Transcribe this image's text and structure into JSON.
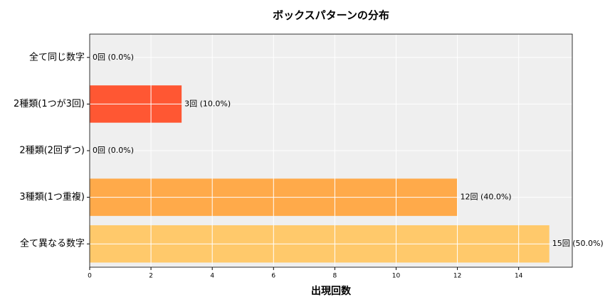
{
  "chart_data": {
    "type": "barh",
    "title": "ボックスパターンの分布",
    "x_label": "出現回数",
    "categories": [
      "全て同じ数字",
      "2種類(1つが3回)",
      "2種類(2回ずつ)",
      "3種類(1つ重複)",
      "全て異なる数字"
    ],
    "values": [
      0,
      3,
      0,
      12,
      15
    ],
    "value_labels": [
      "0回 (0.0%)",
      "3回 (10.0%)",
      "0回 (0.0%)",
      "12回 (40.0%)",
      "15回 (50.0%)"
    ],
    "colors": [
      "#e8342a",
      "#ff5733",
      "#ff8c42",
      "#ffaa4a",
      "#ffc96b"
    ],
    "xlim": [
      0,
      15.75
    ],
    "xticks": [
      0,
      2,
      4,
      6,
      8,
      10,
      12,
      14
    ],
    "grid": true
  }
}
